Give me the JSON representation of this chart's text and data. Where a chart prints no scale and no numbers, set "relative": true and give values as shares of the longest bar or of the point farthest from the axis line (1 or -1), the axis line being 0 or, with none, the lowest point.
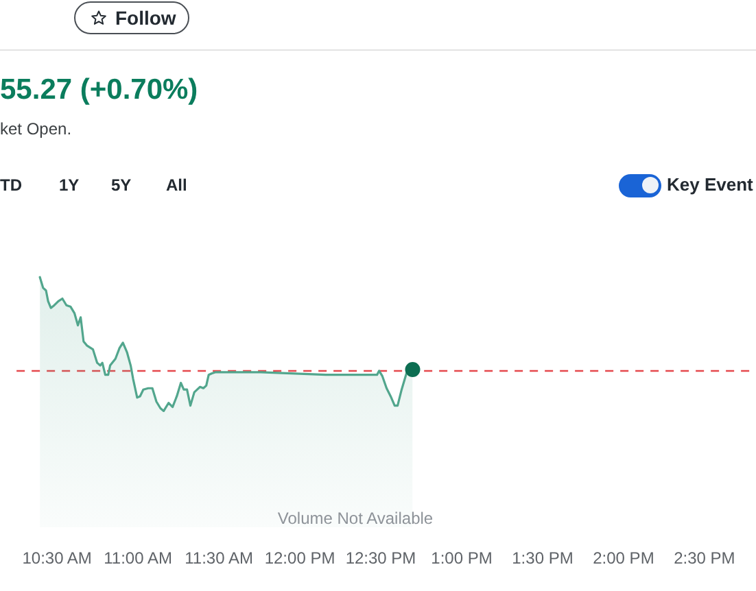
{
  "chart_data": {
    "type": "area",
    "title": "55.27 (+0.70%)",
    "subtitle": "ket Open.",
    "annotations": [
      "Follow",
      "TD",
      "1Y",
      "5Y",
      "All",
      "Key Event",
      "Volume Not Available"
    ],
    "x": [
      10.394,
      10.414,
      10.432,
      10.445,
      10.462,
      10.483,
      10.508,
      10.533,
      10.558,
      10.583,
      10.608,
      10.629,
      10.646,
      10.664,
      10.684,
      10.722,
      10.748,
      10.767,
      10.78,
      10.798,
      10.816,
      10.828,
      10.861,
      10.886,
      10.907,
      10.932,
      10.955,
      10.97,
      10.995,
      11.013,
      11.033,
      11.063,
      11.089,
      11.114,
      11.139,
      11.159,
      11.189,
      11.214,
      11.24,
      11.265,
      11.283,
      11.303,
      11.324,
      11.348,
      11.366,
      11.384,
      11.404,
      11.422,
      11.437,
      11.455,
      11.48,
      11.505,
      11.758,
      12.161,
      12.477,
      12.49,
      12.51,
      12.536,
      12.561,
      12.586,
      12.604,
      12.629,
      12.661,
      12.697
    ],
    "series": [
      {
        "color": "#52a68d",
        "values": [
          1.0,
          0.92,
          0.9,
          0.82,
          0.77,
          0.79,
          0.82,
          0.84,
          0.79,
          0.78,
          0.73,
          0.64,
          0.7,
          0.52,
          0.49,
          0.46,
          0.36,
          0.34,
          0.36,
          0.27,
          0.27,
          0.34,
          0.39,
          0.47,
          0.51,
          0.44,
          0.34,
          0.24,
          0.1,
          0.11,
          0.16,
          0.17,
          0.17,
          0.07,
          0.02,
          0,
          0.06,
          0.03,
          0.11,
          0.21,
          0.16,
          0.16,
          0.04,
          0.14,
          0.16,
          0.18,
          0.17,
          0.19,
          0.27,
          0.28,
          0.29,
          0.29,
          0.29,
          0.27,
          0.27,
          0.3,
          0.26,
          0.17,
          0.11,
          0.04,
          0.04,
          0.16,
          0.29,
          0.31
        ]
      },
      {
        "type": "scatter",
        "x": [
          12.697
        ],
        "values": [
          0.31
        ],
        "color": "#0d6e52"
      }
    ],
    "relative": true,
    "xlim": [
      10.25,
      14.8
    ],
    "xticks": [
      {
        "value": 10.5,
        "label": "10:30 AM"
      },
      {
        "value": 11,
        "label": "11:00 AM"
      },
      {
        "value": 11.5,
        "label": "11:30 AM"
      },
      {
        "value": 12,
        "label": "12:00 PM"
      },
      {
        "value": 12.5,
        "label": "12:30 PM"
      },
      {
        "value": 13,
        "label": "1:00 PM"
      },
      {
        "value": 13.5,
        "label": "1:30 PM"
      },
      {
        "value": 14,
        "label": "2:00 PM"
      },
      {
        "value": 14.5,
        "label": "2:30 PM"
      }
    ],
    "ref_lines": [
      {
        "axis": "y",
        "value": 0.3,
        "color": "#e5484d",
        "line_style": "dashed"
      }
    ],
    "tick_labels": "x"
  }
}
